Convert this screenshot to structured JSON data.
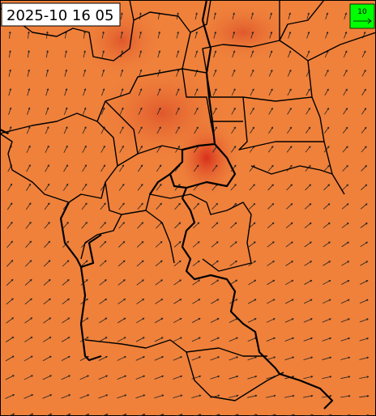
{
  "timestamp": "2025-10 16 05",
  "legend": {
    "label": "10"
  }
}
